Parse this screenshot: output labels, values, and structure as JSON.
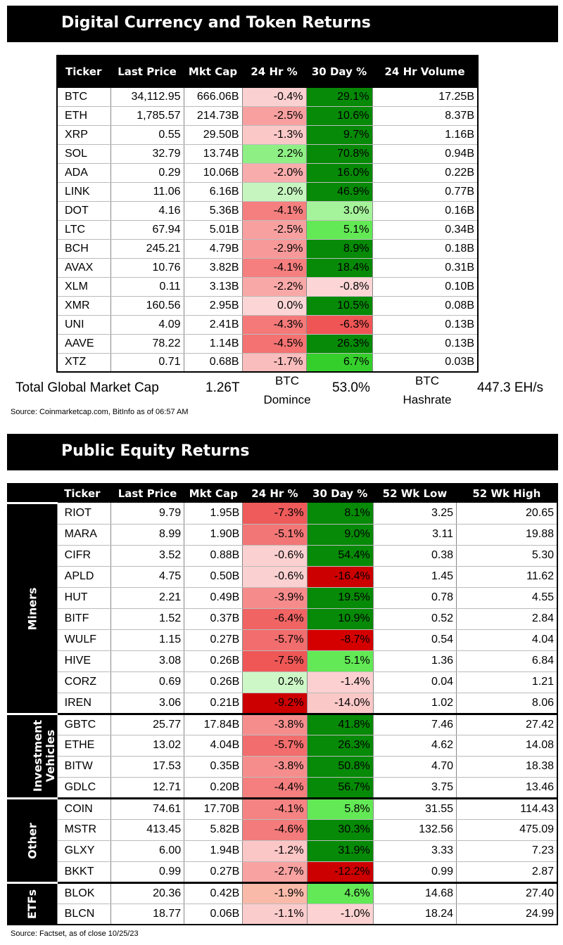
{
  "crypto_section": {
    "title": "Digital Currency and Token Returns",
    "headers": [
      "Ticker",
      "Last Price",
      "Mkt Cap",
      "24 Hr %",
      "30 Day %",
      "24 Hr Volume"
    ],
    "rows": [
      {
        "ticker": "BTC",
        "price": "34,112.95",
        "mcap": "666.06B",
        "d24": "-0.4%",
        "d30": "29.1%",
        "vol": "17.25B",
        "c24": "#fbd0d0",
        "c30": "#078a07"
      },
      {
        "ticker": "ETH",
        "price": "1,785.57",
        "mcap": "214.73B",
        "d24": "-2.5%",
        "d30": "10.6%",
        "vol": "8.37B",
        "c24": "#f8a0a0",
        "c30": "#078a07"
      },
      {
        "ticker": "XRP",
        "price": "0.55",
        "mcap": "29.50B",
        "d24": "-1.3%",
        "d30": "9.7%",
        "vol": "1.16B",
        "c24": "#fbc8c8",
        "c30": "#078a07"
      },
      {
        "ticker": "SOL",
        "price": "32.79",
        "mcap": "13.74B",
        "d24": "2.2%",
        "d30": "70.8%",
        "vol": "0.94B",
        "c24": "#8eef84",
        "c30": "#078a07"
      },
      {
        "ticker": "ADA",
        "price": "0.29",
        "mcap": "10.06B",
        "d24": "-2.0%",
        "d30": "16.0%",
        "vol": "0.22B",
        "c24": "#f9acac",
        "c30": "#078a07"
      },
      {
        "ticker": "LINK",
        "price": "11.06",
        "mcap": "6.16B",
        "d24": "2.0%",
        "d30": "46.9%",
        "vol": "0.77B",
        "c24": "#c6f5bf",
        "c30": "#078a07"
      },
      {
        "ticker": "DOT",
        "price": "4.16",
        "mcap": "5.36B",
        "d24": "-4.1%",
        "d30": "3.0%",
        "vol": "0.16B",
        "c24": "#f57f7f",
        "c30": "#a5f39a"
      },
      {
        "ticker": "LTC",
        "price": "67.94",
        "mcap": "5.01B",
        "d24": "-2.5%",
        "d30": "5.1%",
        "vol": "0.34B",
        "c24": "#f8a0a0",
        "c30": "#62e955"
      },
      {
        "ticker": "BCH",
        "price": "245.21",
        "mcap": "4.79B",
        "d24": "-2.9%",
        "d30": "8.9%",
        "vol": "0.18B",
        "c24": "#f79999",
        "c30": "#078a07"
      },
      {
        "ticker": "AVAX",
        "price": "10.76",
        "mcap": "3.82B",
        "d24": "-4.1%",
        "d30": "18.4%",
        "vol": "0.31B",
        "c24": "#f57f7f",
        "c30": "#078a07"
      },
      {
        "ticker": "XLM",
        "price": "0.11",
        "mcap": "3.13B",
        "d24": "-2.2%",
        "d30": "-0.8%",
        "vol": "0.10B",
        "c24": "#f9a8a8",
        "c30": "#fcd6d6"
      },
      {
        "ticker": "XMR",
        "price": "160.56",
        "mcap": "2.95B",
        "d24": "0.0%",
        "d30": "10.5%",
        "vol": "0.08B",
        "c24": "#fcd6d6",
        "c30": "#078a07"
      },
      {
        "ticker": "UNI",
        "price": "4.09",
        "mcap": "2.41B",
        "d24": "-4.3%",
        "d30": "-6.3%",
        "vol": "0.13B",
        "c24": "#f57979",
        "c30": "#f05555"
      },
      {
        "ticker": "AAVE",
        "price": "78.22",
        "mcap": "1.14B",
        "d24": "-4.5%",
        "d30": "26.3%",
        "vol": "0.13B",
        "c24": "#f47272",
        "c30": "#078a07"
      },
      {
        "ticker": "XTZ",
        "price": "0.71",
        "mcap": "0.68B",
        "d24": "-1.7%",
        "d30": "6.7%",
        "vol": "0.03B",
        "c24": "#fabdbd",
        "c30": "#35cf2c"
      }
    ],
    "summary": {
      "total_label": "Total Global Market Cap",
      "total_value": "1.26T",
      "dom_label_1": "BTC",
      "dom_label_2": "Domince",
      "dom_value": "53.0%",
      "hash_label_1": "BTC",
      "hash_label_2": "Hashrate",
      "hash_value": "447.3 EH/s"
    },
    "source": "Source: Coinmarketcap.com, BitInfo as of 06:57 AM"
  },
  "equity_section": {
    "title": "Public Equity Returns",
    "headers": [
      "Ticker",
      "Last Price",
      "Mkt Cap",
      "24 Hr %",
      "30 Day %",
      "52 Wk Low",
      "52 Wk High"
    ],
    "groups": [
      {
        "label_1": "Miners",
        "label_2": "",
        "rows": [
          {
            "ticker": "RIOT",
            "price": "9.79",
            "mcap": "1.95B",
            "d24": "-7.3%",
            "d30": "8.1%",
            "low": "3.25",
            "high": "20.65",
            "c24": "#ef5a5a",
            "c30": "#078a07"
          },
          {
            "ticker": "MARA",
            "price": "8.99",
            "mcap": "1.90B",
            "d24": "-5.1%",
            "d30": "9.0%",
            "low": "3.11",
            "high": "19.88",
            "c24": "#f37676",
            "c30": "#078a07"
          },
          {
            "ticker": "CIFR",
            "price": "3.52",
            "mcap": "0.88B",
            "d24": "-0.6%",
            "d30": "54.4%",
            "low": "0.38",
            "high": "5.30",
            "c24": "#fbd0d0",
            "c30": "#078a07"
          },
          {
            "ticker": "APLD",
            "price": "4.75",
            "mcap": "0.50B",
            "d24": "-0.6%",
            "d30": "-16.4%",
            "low": "1.45",
            "high": "11.62",
            "c24": "#fbd0d0",
            "c30": "#cc0000"
          },
          {
            "ticker": "HUT",
            "price": "2.21",
            "mcap": "0.49B",
            "d24": "-3.9%",
            "d30": "19.5%",
            "low": "0.78",
            "high": "4.55",
            "c24": "#f68b8b",
            "c30": "#078a07"
          },
          {
            "ticker": "BITF",
            "price": "1.52",
            "mcap": "0.37B",
            "d24": "-6.4%",
            "d30": "10.9%",
            "low": "0.52",
            "high": "2.84",
            "c24": "#f06464",
            "c30": "#078a07"
          },
          {
            "ticker": "WULF",
            "price": "1.15",
            "mcap": "0.27B",
            "d24": "-5.7%",
            "d30": "-8.7%",
            "low": "0.54",
            "high": "4.04",
            "c24": "#f26d6d",
            "c30": "#d40000"
          },
          {
            "ticker": "HIVE",
            "price": "3.08",
            "mcap": "0.26B",
            "d24": "-7.5%",
            "d30": "5.1%",
            "low": "1.36",
            "high": "6.84",
            "c24": "#ef5757",
            "c30": "#62e955"
          },
          {
            "ticker": "CORZ",
            "price": "0.69",
            "mcap": "0.26B",
            "d24": "0.2%",
            "d30": "-1.4%",
            "low": "0.04",
            "high": "1.21",
            "c24": "#cef7c8",
            "c30": "#fcd0d0"
          },
          {
            "ticker": "IREN",
            "price": "3.06",
            "mcap": "0.21B",
            "d24": "-9.2%",
            "d30": "-14.0%",
            "low": "1.02",
            "high": "8.06",
            "c24": "#cc0000",
            "c30": "#fbc8c8"
          }
        ]
      },
      {
        "label_1": "Investment",
        "label_2": "Vehicles",
        "rows": [
          {
            "ticker": "GBTC",
            "price": "25.77",
            "mcap": "17.84B",
            "d24": "-3.8%",
            "d30": "41.8%",
            "low": "7.46",
            "high": "27.42",
            "c24": "#f68d8d",
            "c30": "#078a07"
          },
          {
            "ticker": "ETHE",
            "price": "13.02",
            "mcap": "4.04B",
            "d24": "-5.7%",
            "d30": "26.3%",
            "low": "4.62",
            "high": "14.08",
            "c24": "#f26d6d",
            "c30": "#078a07"
          },
          {
            "ticker": "BITW",
            "price": "17.53",
            "mcap": "0.35B",
            "d24": "-3.8%",
            "d30": "50.8%",
            "low": "4.70",
            "high": "18.38",
            "c24": "#f68d8d",
            "c30": "#078a07"
          },
          {
            "ticker": "GDLC",
            "price": "12.71",
            "mcap": "0.20B",
            "d24": "-4.4%",
            "d30": "56.7%",
            "low": "3.75",
            "high": "13.46",
            "c24": "#f57f7f",
            "c30": "#078a07"
          }
        ]
      },
      {
        "label_1": "Other",
        "label_2": "",
        "rows": [
          {
            "ticker": "COIN",
            "price": "74.61",
            "mcap": "17.70B",
            "d24": "-4.1%",
            "d30": "5.8%",
            "low": "31.55",
            "high": "114.43",
            "c24": "#f68383",
            "c30": "#62e955"
          },
          {
            "ticker": "MSTR",
            "price": "413.45",
            "mcap": "5.82B",
            "d24": "-4.6%",
            "d30": "30.3%",
            "low": "132.56",
            "high": "475.09",
            "c24": "#f47b7b",
            "c30": "#078a07"
          },
          {
            "ticker": "GLXY",
            "price": "6.00",
            "mcap": "1.94B",
            "d24": "-1.2%",
            "d30": "31.9%",
            "low": "3.33",
            "high": "7.23",
            "c24": "#fbc6c6",
            "c30": "#078a07"
          },
          {
            "ticker": "BKKT",
            "price": "0.99",
            "mcap": "0.27B",
            "d24": "-2.7%",
            "d30": "-12.2%",
            "low": "0.99",
            "high": "2.87",
            "c24": "#f8a2a2",
            "c30": "#cc0000"
          }
        ]
      },
      {
        "label_1": "ETFs",
        "label_2": "",
        "rows": [
          {
            "ticker": "BLOK",
            "price": "20.36",
            "mcap": "0.42B",
            "d24": "-1.9%",
            "d30": "4.6%",
            "low": "14.68",
            "high": "27.40",
            "c24": "#fabaaa",
            "c30": "#62e955"
          },
          {
            "ticker": "BLCN",
            "price": "18.77",
            "mcap": "0.06B",
            "d24": "-1.1%",
            "d30": "-1.0%",
            "low": "18.24",
            "high": "24.99",
            "c24": "#fbcccc",
            "c30": "#fcd2d2"
          }
        ]
      }
    ],
    "source": "Source: Factset, as of close 10/25/23"
  }
}
